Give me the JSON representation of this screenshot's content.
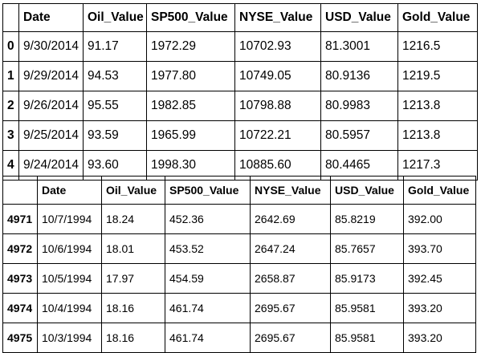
{
  "tables": [
    {
      "columns": [
        "",
        "Date",
        "Oil_Value",
        "SP500_Value",
        "NYSE_Value",
        "USD_Value",
        "Gold_Value"
      ],
      "rows": [
        [
          "0",
          "9/30/2014",
          "91.17",
          "1972.29",
          "10702.93",
          "81.3001",
          "1216.5"
        ],
        [
          "1",
          "9/29/2014",
          "94.53",
          "1977.80",
          "10749.05",
          "80.9136",
          "1219.5"
        ],
        [
          "2",
          "9/26/2014",
          "95.55",
          "1982.85",
          "10798.88",
          "80.9983",
          "1213.8"
        ],
        [
          "3",
          "9/25/2014",
          "93.59",
          "1965.99",
          "10722.21",
          "80.5957",
          "1213.8"
        ],
        [
          "4",
          "9/24/2014",
          "93.60",
          "1998.30",
          "10885.60",
          "80.4465",
          "1217.3"
        ]
      ]
    },
    {
      "columns": [
        "",
        "Date",
        "Oil_Value",
        "SP500_Value",
        "NYSE_Value",
        "USD_Value",
        "Gold_Value"
      ],
      "rows": [
        [
          "4971",
          "10/7/1994",
          "18.24",
          "452.36",
          "2642.69",
          "85.8219",
          "392.00"
        ],
        [
          "4972",
          "10/6/1994",
          "18.01",
          "453.52",
          "2647.24",
          "85.7657",
          "393.70"
        ],
        [
          "4973",
          "10/5/1994",
          "17.97",
          "454.59",
          "2658.87",
          "85.9173",
          "392.45"
        ],
        [
          "4974",
          "10/4/1994",
          "18.16",
          "461.74",
          "2695.67",
          "85.9581",
          "393.20"
        ],
        [
          "4975",
          "10/3/1994",
          "18.16",
          "461.74",
          "2695.67",
          "85.9581",
          "393.20"
        ]
      ]
    }
  ]
}
